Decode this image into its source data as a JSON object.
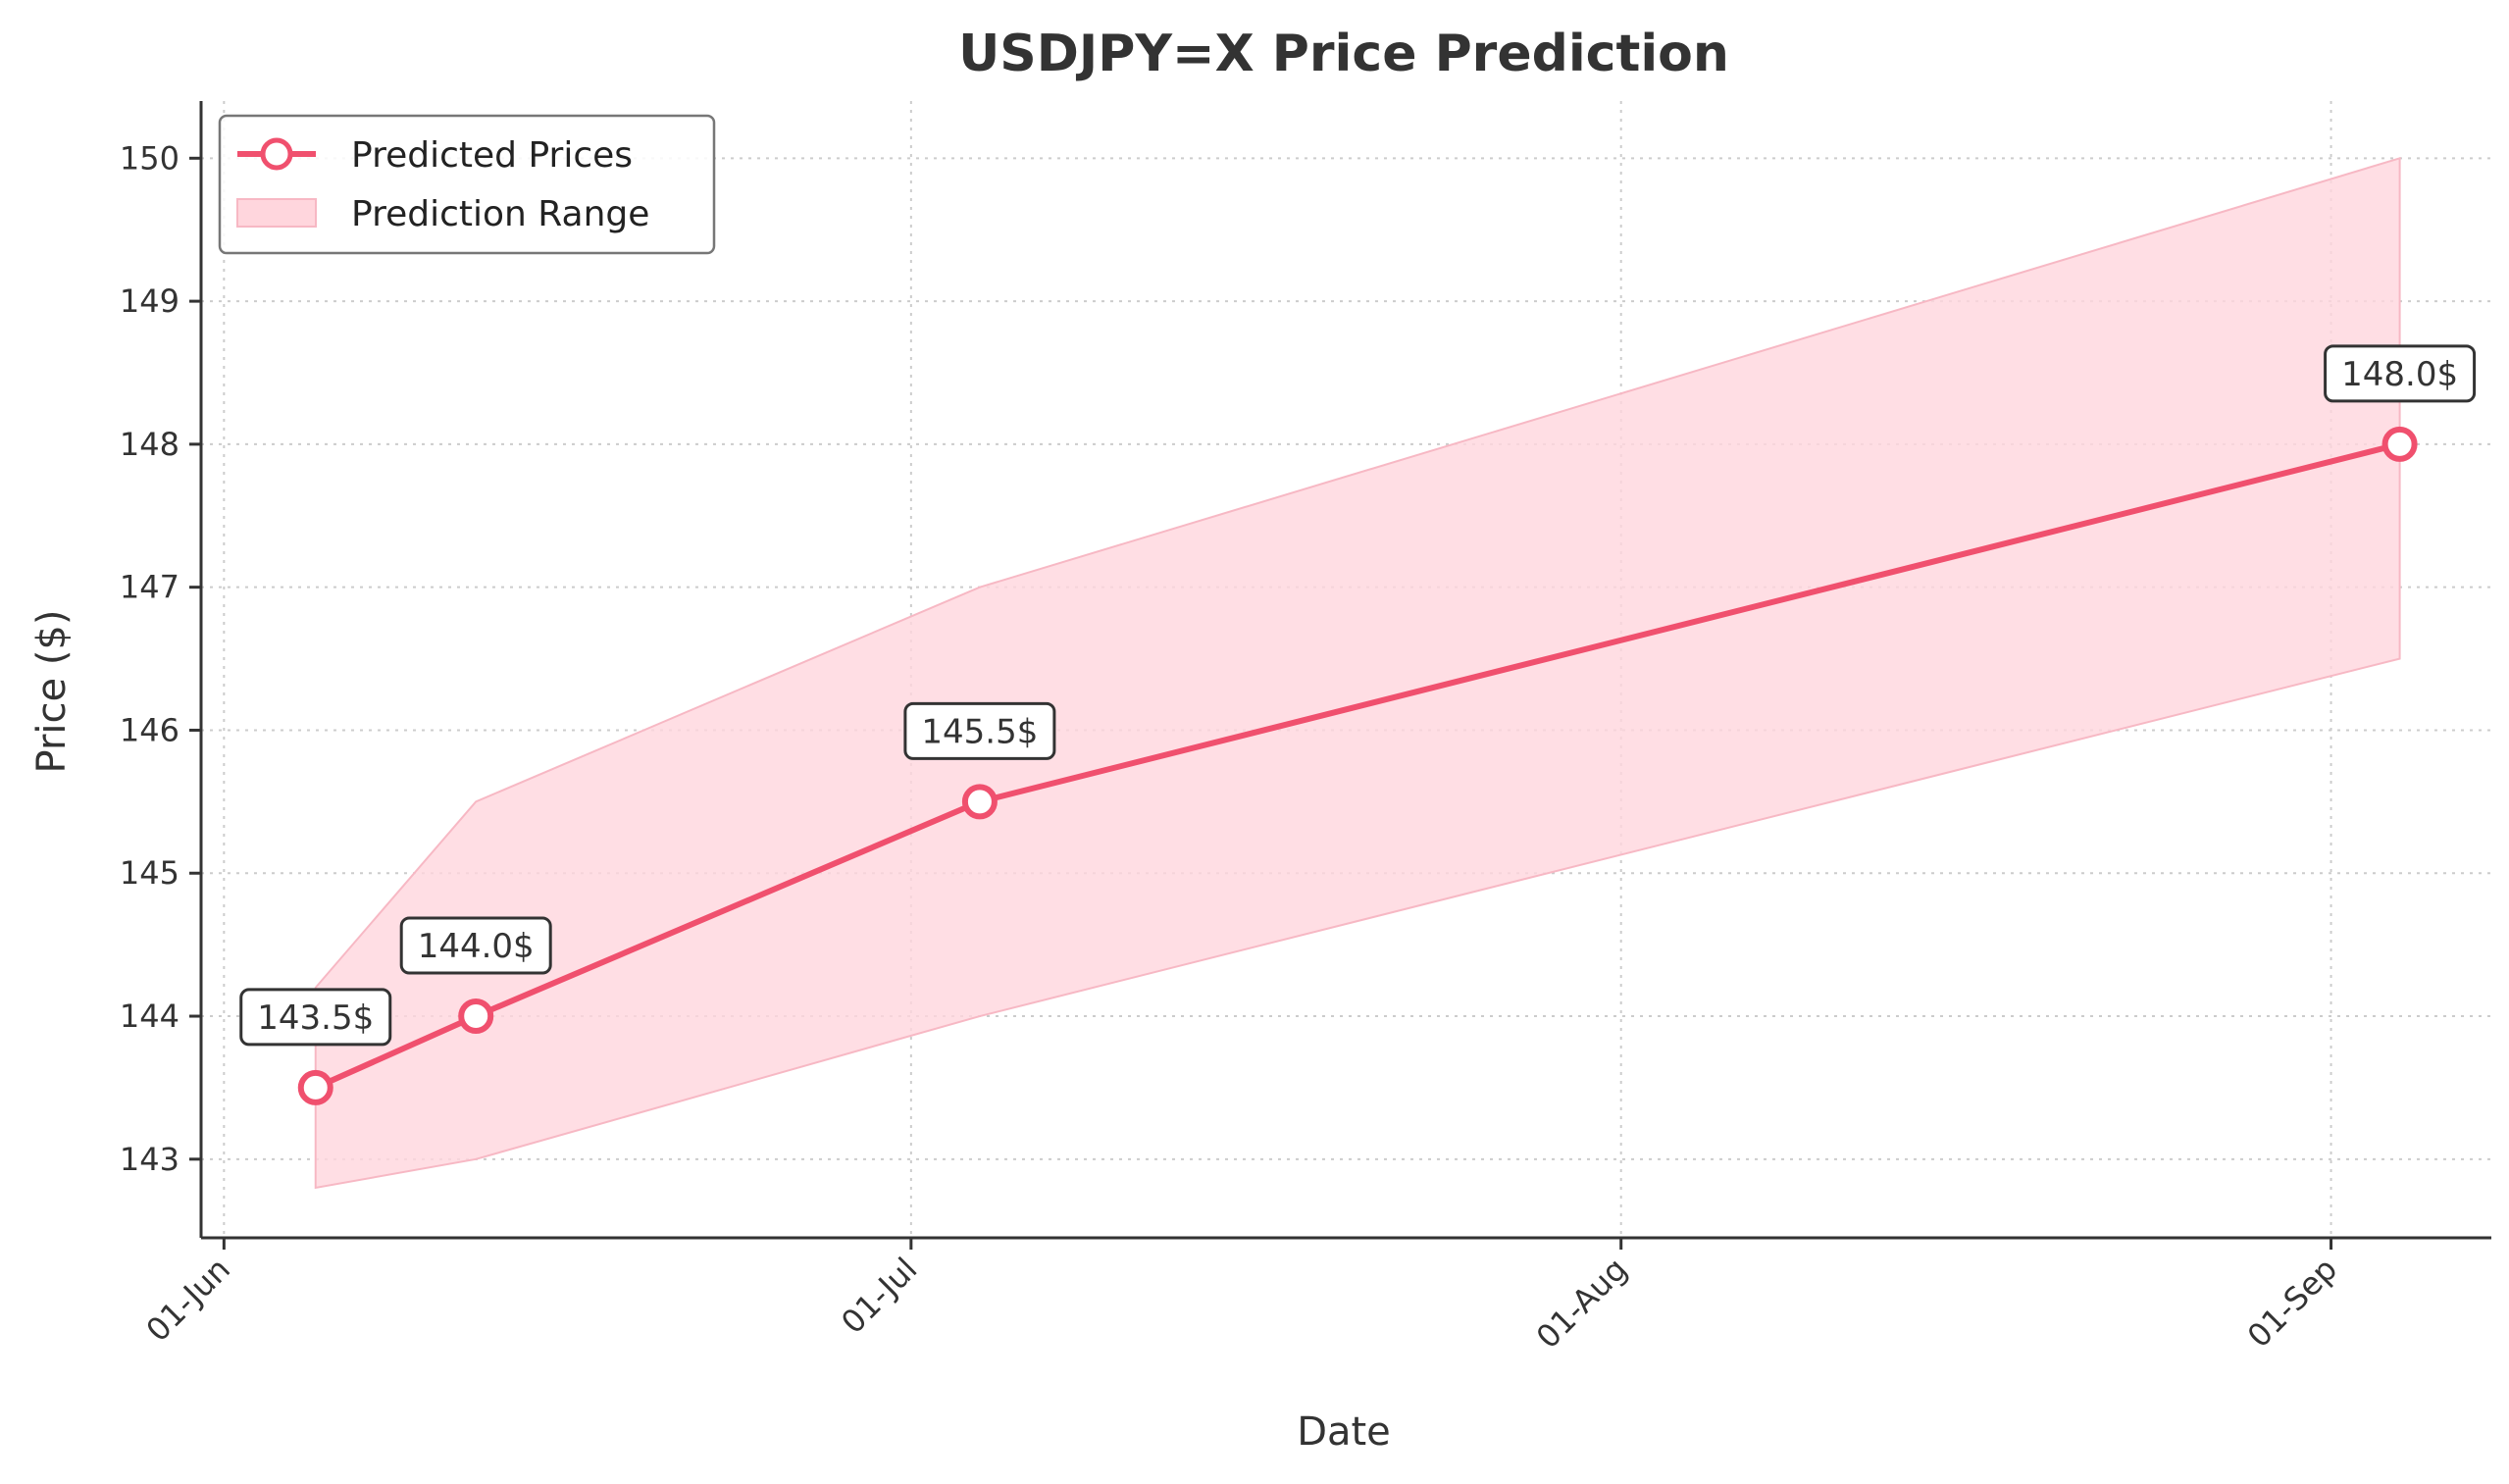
{
  "chart_data": {
    "type": "line",
    "title": "USDJPY=X Price Prediction",
    "xlabel": "Date",
    "ylabel": "Price ($)",
    "x_ticks": [
      {
        "date": "2024-06-01",
        "label": "01-Jun"
      },
      {
        "date": "2024-07-01",
        "label": "01-Jul"
      },
      {
        "date": "2024-08-01",
        "label": "01-Aug"
      },
      {
        "date": "2024-09-01",
        "label": "01-Sep"
      }
    ],
    "y_ticks": [
      "143",
      "144",
      "145",
      "146",
      "147",
      "148",
      "149",
      "150"
    ],
    "xlim": [
      "2024-05-31",
      "2024-09-08"
    ],
    "ylim": [
      142.45,
      150.4
    ],
    "grid": true,
    "legend_position": "top-left",
    "colors": {
      "line": "#f0506e",
      "band": "#ffd6dd",
      "band_edge": "#f7b8c4",
      "axis": "#333333",
      "grid": "#cccccc"
    },
    "series": [
      {
        "name": "Predicted Prices",
        "points": [
          {
            "x": "2024-06-05",
            "y": 143.5,
            "label": "143.5$"
          },
          {
            "x": "2024-06-12",
            "y": 144.0,
            "label": "144.0$"
          },
          {
            "x": "2024-07-04",
            "y": 145.5,
            "label": "145.5$"
          },
          {
            "x": "2024-09-04",
            "y": 148.0,
            "label": "148.0$"
          }
        ]
      }
    ],
    "range": {
      "name": "Prediction Range",
      "points": [
        {
          "x": "2024-06-05",
          "low": 142.8,
          "high": 144.2
        },
        {
          "x": "2024-06-12",
          "low": 143.0,
          "high": 145.5
        },
        {
          "x": "2024-07-04",
          "low": 144.0,
          "high": 147.0
        },
        {
          "x": "2024-09-04",
          "low": 146.5,
          "high": 150.0
        }
      ]
    }
  }
}
